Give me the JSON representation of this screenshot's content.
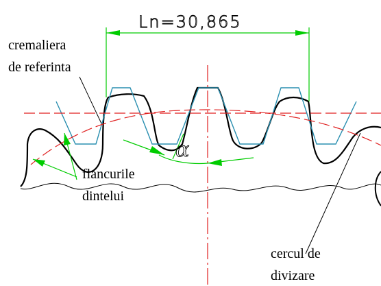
{
  "dimension": {
    "text": "Ln=30,865"
  },
  "angle": {
    "symbol": "α"
  },
  "labels": {
    "rack_line1": "cremaliera",
    "rack_line2": "de referinta",
    "flanks_line1": "flancurile",
    "flanks_line2": "dintelui",
    "circle_line1": "cercul de",
    "circle_line2": "divizare"
  },
  "colors": {
    "dimension_lines": "#00cc00",
    "rack_profile": "#2a8fb0",
    "center_lines": "#e02020",
    "gear_outline": "#000000",
    "leader_lines": "#000000"
  }
}
